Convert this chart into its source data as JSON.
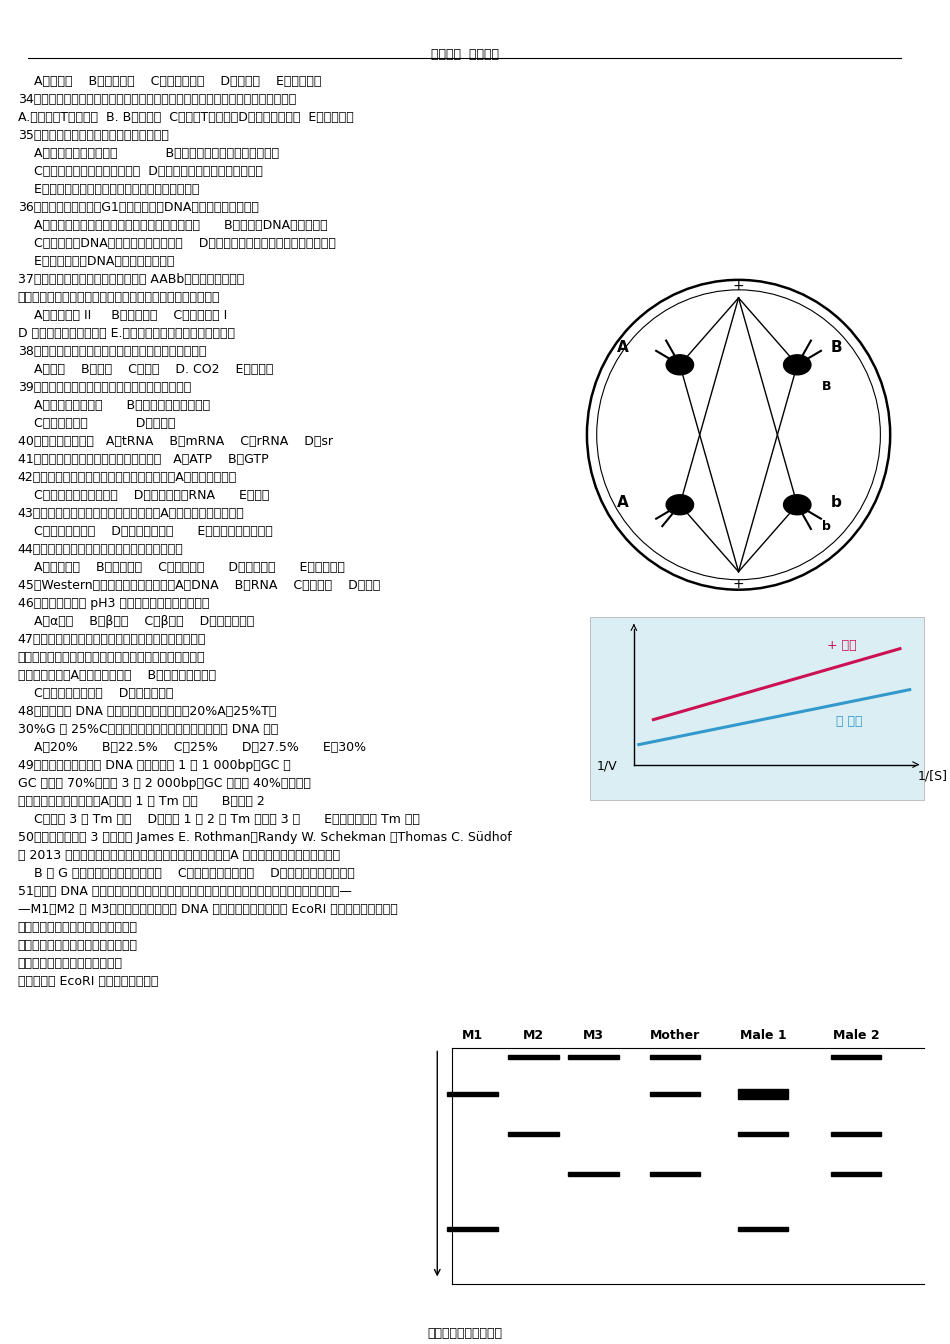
{
  "title": "涛哥出品  必属精品",
  "background_color": "#ffffff",
  "footer": "安徽师范大学附属中学",
  "lines": [
    [
      18,
      75,
      "    A．呼吸道    B．神经系统    C．消化道上皮    D．骨骼肌    E．生殖系统"
    ],
    [
      18,
      93,
      "34．在机体免疫反应中，受抗体包被的病毒被一种细胞吞噬和消灭。这种细胞是："
    ],
    [
      18,
      111,
      "A.细胞毒性T淋巴细胞  B. B淋巴细胞  C．辅助T淋巴细胞D．嗜中性粒细胞  E．记忆细胞"
    ],
    [
      18,
      129,
      "35．阻止神经元细胞钾离子流动的后果是："
    ],
    [
      18,
      147,
      "    A．动作电位比通常更强            B．在动作电位期间，去极化更快"
    ],
    [
      18,
      165,
      "    C．神经元的阈电位将变得更负  D．神经元的静息单位将变得更负"
    ],
    [
      18,
      183,
      "    E．在动作电位期间将没有再极化或者再极化变慢"
    ],
    [
      18,
      201,
      "36．假定在细胞周期的G1检查点发现了DNA有严重的损伤，则："
    ],
    [
      18,
      219,
      "    A．染色体不会与有丝分裂时的纺锤丝正常的结合      B．染色体DNA将不能复制"
    ],
    [
      18,
      237,
      "    C．带有损伤DNA的细胞将进入有丝分裂    D．细胞将进行生长，如何进入有丝分裂"
    ],
    [
      18,
      255,
      "    E．细胞周期在DNA复制发生以后停止"
    ],
    [
      18,
      273,
      "37．有一种二倍体的生物具有基因型 AABb，这两个基因位于"
    ],
    [
      18,
      291,
      "不同的染色体上，如下图所示。你认为下图所示的细胞处于："
    ],
    [
      18,
      309,
      "    A．减数分裂 II     B．有丝分裂    C．减数分裂 I"
    ],
    [
      18,
      327,
      "D 减数分裂或者有丝分裂 E.既不是减数分裂，也不是有丝分裂"
    ],
    [
      18,
      345,
      "38．以下不能通过自由扩散的方式通过质膜的物质是："
    ],
    [
      18,
      363,
      "    A．氧气    B．甘油    C．乙醇    D. CO2    E．氨基酸"
    ],
    [
      18,
      381,
      "39．支原体具有的细胞生物学特征包括（多选）："
    ],
    [
      18,
      399,
      "    A．能通过细菌滤器      B．细胞膜不含有胆固醇"
    ],
    [
      18,
      417,
      "    C．具有细胞壁            D．无核膜"
    ],
    [
      18,
      435,
      "40．反密码子位于：   A．tRNA    B．mRNA    C．rRNA    D．sr"
    ],
    [
      18,
      453,
      "41．微管组装需要消耗的能量直接来自：   A．ATP    B．GTP"
    ],
    [
      18,
      471,
      "42．古菌与真核生物的共同特征有（多选）：A．都具有核小体"
    ],
    [
      18,
      489,
      "    C．转录都需要转录因子    D．都具有干扰RNA      E．翻译"
    ],
    [
      18,
      507,
      "43．古菌和细菌的共同特征有（多选）：A．细胞壁上都有肽聚糖"
    ],
    [
      18,
      525,
      "    C．都没有端聚酶    D．都具有操纵子      E．都对嘌呤霉素敏感"
    ],
    [
      18,
      543,
      "44．结构基因组学的主要任务是获得（多选）："
    ],
    [
      18,
      561,
      "    A．连锁图谱    B．物理图谱    C．序列图谱      D．转录图谱      E．互作图谱"
    ],
    [
      18,
      579,
      "45．Western印迹用来检测的对象是：A．DNA    B．RNA    C．蛋白质    D．寡糖"
    ],
    [
      18,
      597,
      "46．多聚赖氨酸在 pH3 时形成的二级结构应该是："
    ],
    [
      18,
      615,
      "    A．α螺旋    B．β折叠    C．β转角    D．无规则卷曲"
    ],
    [
      18,
      633,
      "47．有人就一种药物对某种酶活性的影响进行了动力学"
    ],
    [
      18,
      651,
      "分析，结果如下图；根据图中的结果，你认为该药物的作"
    ],
    [
      18,
      669,
      "用方式是一种：A．竞争性抑制剂    B．非竞争性抑制剂"
    ],
    [
      18,
      687,
      "    C．反竞争性抑制剂    D．别构激活剂"
    ],
    [
      18,
      705,
      "48．一个单链 DNA 分子含有的碱基组成是：20%A、25%T、"
    ],
    [
      18,
      723,
      "30%G 和 25%C。若将它的互补链合成，得到的双链 DNA 分子"
    ],
    [
      18,
      741,
      "    A．20%      B．22.5%    C．25%      D．27.5%      E．30%"
    ],
    [
      18,
      759,
      "49．有三种不同的双链 DNA 分子：分子 1 为 1 000bp，GC 含"
    ],
    [
      18,
      777,
      "GC 含量为 70%；分子 3 为 2 000bp，GC 含量为 40%。如果将"
    ],
    [
      18,
      795,
      "实验，则预期的结果是：A．分子 1 的 Tm 最高      B．分子 2"
    ],
    [
      18,
      813,
      "    C．分子 3 的 Tm 最高    D．分子 1 和 2 的 Tm 比分子 3 高      E．三种分子的 Tm 相同"
    ],
    [
      18,
      831,
      "50．美国和德国的 3 位科学家 James E. Rothman、Randy W. Schekman 和Thomas C. Südhof"
    ],
    [
      18,
      849,
      "获 2013 年的诺贝尔生理学或医学奖这是因为他们发现了：A 细胞内的囊泡运输的调节机制"
    ],
    [
      18,
      867,
      "    B 与 G 蛋白偶联的受体的作用机制    C．肮病毒的致病机制    D．细胞周期的调节机制"
    ],
    [
      18,
      885,
      "51．三段 DNA 序列作为遗传标记被用于亲子鉴定，它们是同一个遗传标记的三个等位基因—"
    ],
    [
      18,
      903,
      "—M1、M2 和 M3。每一个等位基因的 DNA 样本使用限制性内切酶 EcoRI 切割以后，再进行琼"
    ],
    [
      18,
      921,
      "脂糖电泳，电泳条带如下图。一位母"
    ],
    [
      18,
      939,
      "亲和她的小孩，以及两位可能的父亲"
    ],
    [
      18,
      957,
      "体内的上述等位基因序列抽来以"
    ],
    [
      18,
      975,
      "后，也使用 EcoRI 切割，并进行琼脂"
    ]
  ]
}
